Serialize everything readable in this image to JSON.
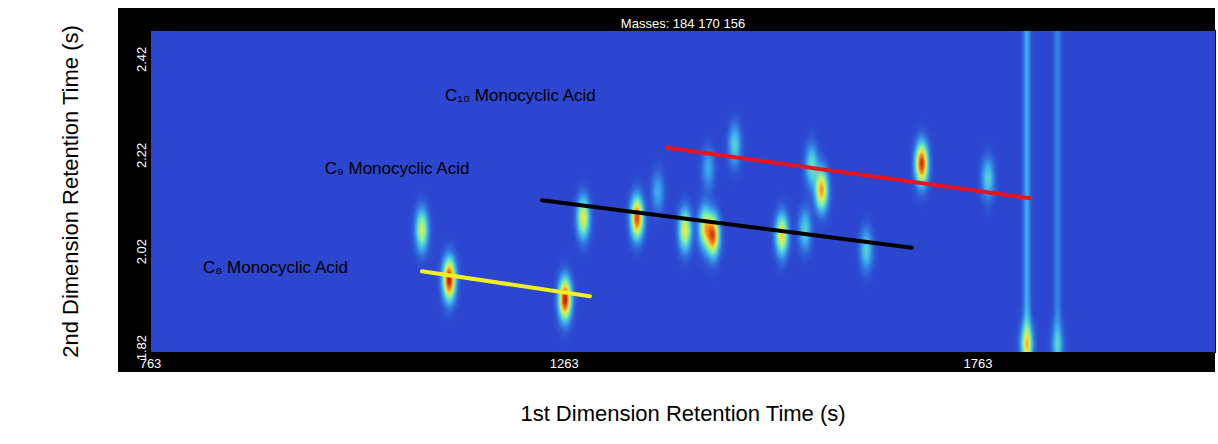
{
  "chart_data": {
    "type": "heatmap",
    "title": "Masses: 184 170 156",
    "x_label": "1st Dimension Retention Time (s)",
    "y_label": "2nd Dimension Retention Time (s)",
    "xlim": [
      763,
      2050
    ],
    "xticks": [
      763,
      1263,
      1763
    ],
    "ylim": [
      1.81,
      2.48
    ],
    "yticks": [
      1.82,
      2.02,
      2.22,
      2.42
    ],
    "intensity_range": [
      0,
      1
    ],
    "peaks": {
      "x": [
        1091,
        1124,
        1264,
        1286,
        1351,
        1409,
        1433,
        1443,
        1469,
        1526,
        1554,
        1562,
        1574,
        1628,
        1695,
        1775,
        1376,
        1437,
        1822,
        1859
      ],
      "y": [
        2.065,
        1.962,
        1.921,
        2.09,
        2.09,
        2.065,
        2.07,
        2.053,
        2.241,
        2.055,
        2.065,
        2.199,
        2.148,
        2.024,
        2.203,
        2.172,
        2.144,
        2.193,
        1.828,
        1.828
      ],
      "intensity": [
        0.55,
        1.0,
        1.0,
        0.6,
        0.9,
        0.6,
        0.6,
        0.85,
        0.3,
        0.65,
        0.3,
        0.35,
        0.75,
        0.3,
        0.95,
        0.3,
        0.2,
        0.2,
        0.5,
        0.2
      ]
    },
    "streaks": {
      "x": [
        1822,
        1859
      ],
      "intensity": [
        0.2,
        0.12
      ]
    },
    "series": [
      {
        "name": "C₈ Monocyclic Acid",
        "color": "#f2f01e",
        "x": [
          1091,
          1294
        ],
        "values": [
          1.979,
          1.927
        ],
        "label_x": 914,
        "label_y": 1.987
      },
      {
        "name": "C₉ Monocyclic Acid",
        "color": "#000000",
        "x": [
          1236,
          1683
        ],
        "values": [
          2.127,
          2.028
        ],
        "label_x": 1061,
        "label_y": 2.193
      },
      {
        "name": "C₁₀ Monocyclic Acid",
        "color": "#e8141e",
        "x": [
          1387,
          1826
        ],
        "values": [
          2.236,
          2.131
        ],
        "label_x": 1210,
        "label_y": 2.344
      }
    ]
  }
}
